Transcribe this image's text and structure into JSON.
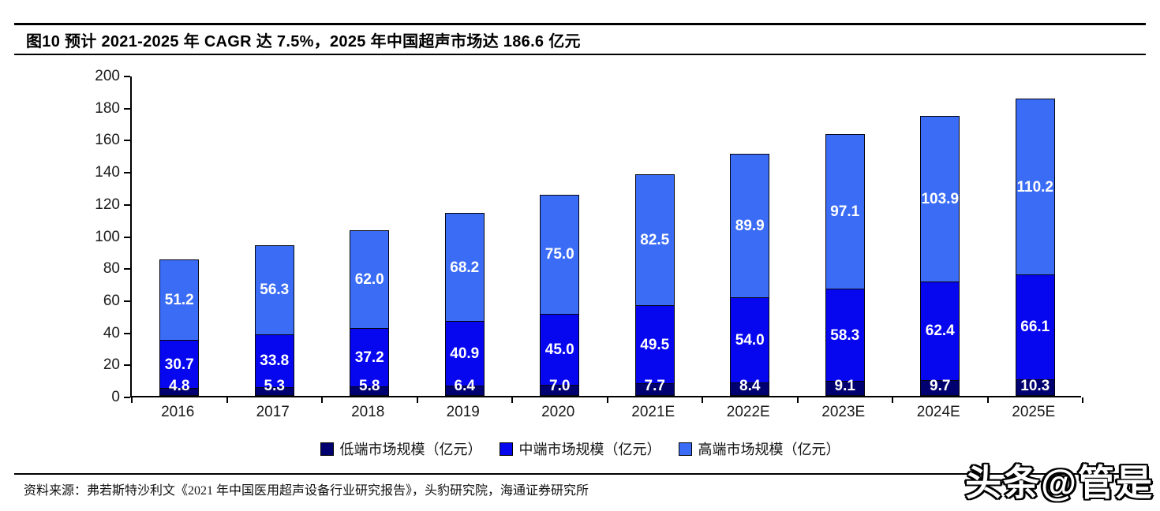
{
  "header": {
    "title": "图10 预计 2021-2025 年 CAGR 达 7.5%，2025 年中国超声市场达 186.6 亿元"
  },
  "chart_data": {
    "type": "bar",
    "stacked": true,
    "title": "",
    "xlabel": "",
    "ylabel": "",
    "ylim": [
      0,
      200
    ],
    "ytick_step": 20,
    "grid": false,
    "legend_position": "bottom",
    "value_label_color": "#ffffff",
    "categories": [
      "2016",
      "2017",
      "2018",
      "2019",
      "2020",
      "2021E",
      "2022E",
      "2023E",
      "2024E",
      "2025E"
    ],
    "series": [
      {
        "name": "低端市场规模（亿元）",
        "color": "#000070",
        "values": [
          4.8,
          5.3,
          5.8,
          6.4,
          7.0,
          7.7,
          8.4,
          9.1,
          9.7,
          10.3
        ]
      },
      {
        "name": "中端市场规模（亿元）",
        "color": "#0606ef",
        "values": [
          30.7,
          33.8,
          37.2,
          40.9,
          45.0,
          49.5,
          54.0,
          58.3,
          62.4,
          66.1
        ]
      },
      {
        "name": "高端市场规模（亿元）",
        "color": "#3b6cf6",
        "values": [
          51.2,
          56.3,
          62.0,
          68.2,
          75.0,
          82.5,
          89.9,
          97.1,
          103.9,
          110.2
        ]
      }
    ]
  },
  "footer": {
    "source": "资料来源：弗若斯特沙利文《2021 年中国医用超声设备行业研究报告》，头豹研究院，海通证券研究所"
  },
  "watermark": {
    "text": "头条@管是"
  }
}
